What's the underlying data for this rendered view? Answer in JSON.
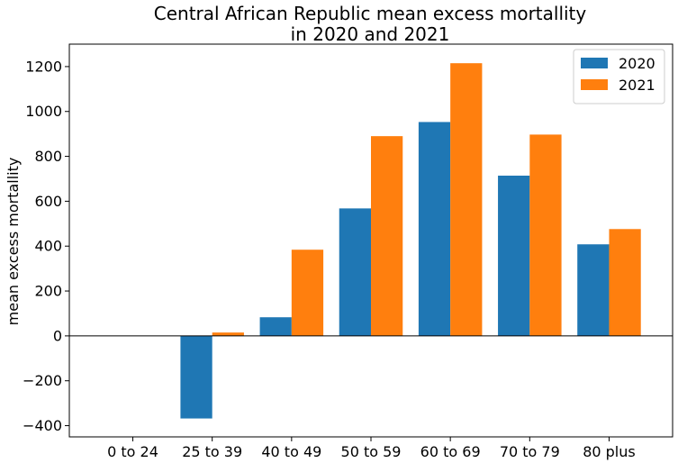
{
  "chart_data": {
    "type": "bar",
    "title_lines": [
      "Central African Republic mean excess mortallity",
      "in 2020 and 2021"
    ],
    "xlabel": "",
    "ylabel": "mean excess mortallity",
    "categories": [
      "0 to 24",
      "25 to 39",
      "40 to 49",
      "50 to 59",
      "60 to 69",
      "70 to 79",
      "80 plus"
    ],
    "series": [
      {
        "name": "2020",
        "color": "#1f77b4",
        "values": [
          0,
          -368,
          83,
          568,
          953,
          714,
          408
        ]
      },
      {
        "name": "2021",
        "color": "#ff7f0e",
        "values": [
          0,
          15,
          384,
          890,
          1215,
          897,
          476
        ]
      }
    ],
    "ylim": [
      -450,
      1300
    ],
    "yticks": [
      -400,
      -200,
      0,
      200,
      400,
      600,
      800,
      1000,
      1200
    ],
    "legend": "top-right",
    "grid": false
  }
}
